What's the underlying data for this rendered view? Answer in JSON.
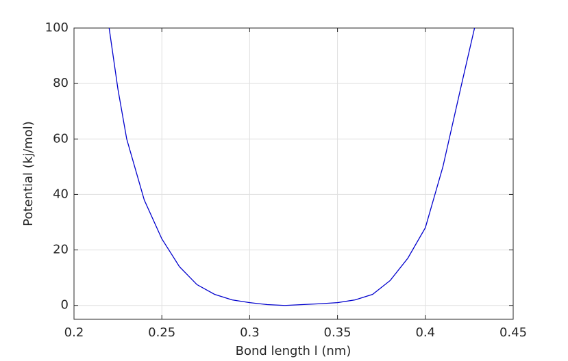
{
  "chart_data": {
    "type": "line",
    "x_label": "Bond length l (nm)",
    "y_label": "Potential (kj/mol)",
    "x": [
      0.22,
      0.225,
      0.23,
      0.24,
      0.25,
      0.26,
      0.27,
      0.28,
      0.29,
      0.3,
      0.31,
      0.32,
      0.33,
      0.34,
      0.35,
      0.36,
      0.37,
      0.38,
      0.39,
      0.4,
      0.41,
      0.42,
      0.428
    ],
    "series": [
      {
        "color": "#0000cd",
        "values": [
          100,
          78,
          60,
          38,
          24,
          14,
          7.5,
          4,
          2,
          1,
          0.3,
          0,
          0.3,
          0.6,
          1,
          2,
          4,
          9,
          17,
          28,
          50,
          78,
          100
        ]
      }
    ],
    "xlim": [
      0.2,
      0.45
    ],
    "xticks": [
      0.2,
      0.25,
      0.3,
      0.35,
      0.4,
      0.45
    ],
    "ylim": [
      -5,
      100
    ],
    "yticks": [
      0,
      20,
      40,
      60,
      80,
      100
    ],
    "grid": true
  }
}
